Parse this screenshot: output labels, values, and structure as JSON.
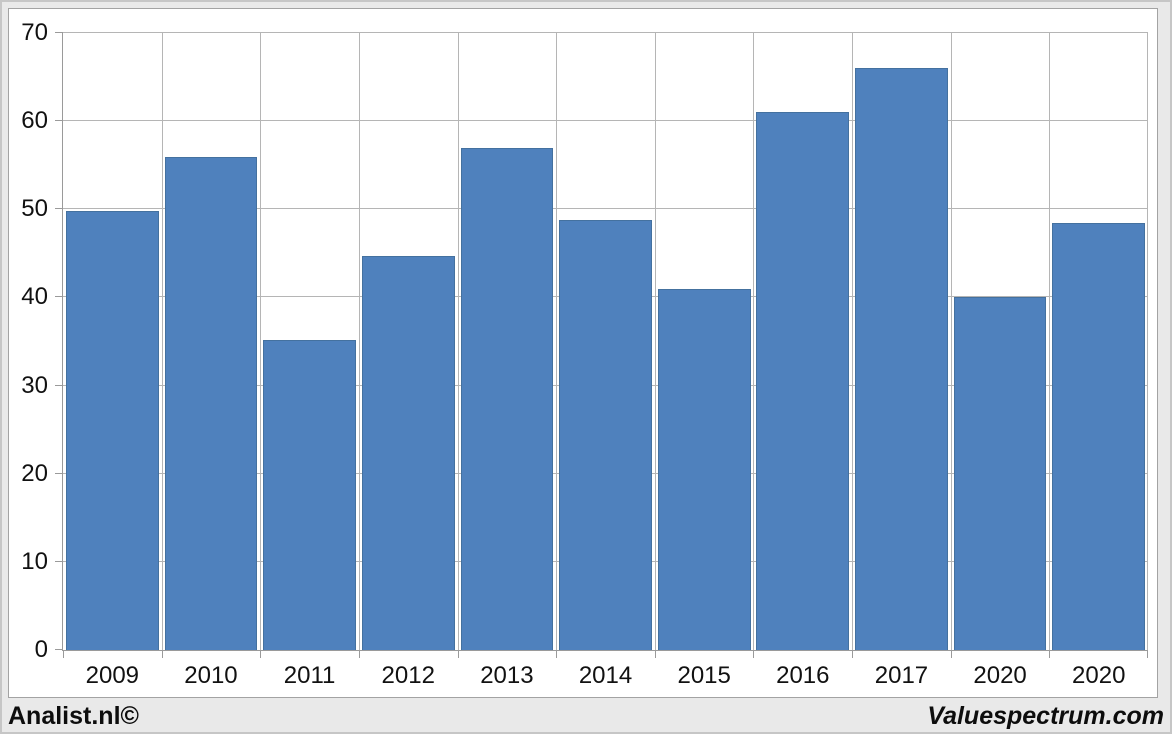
{
  "footer": {
    "left": "Analist.nl©",
    "right": "Valuespectrum.com"
  },
  "colors": {
    "bar_fill": "#4f81bd",
    "bar_border": "#44719f",
    "gridline": "#b5b5b5",
    "axis_line": "#9a9a9a",
    "plot_background": "#ffffff",
    "frame_background": "#e9e9e9"
  },
  "chart_data": {
    "type": "bar",
    "categories": [
      "2009",
      "2010",
      "2011",
      "2012",
      "2013",
      "2014",
      "2015",
      "2016",
      "2017",
      "2020",
      "2020"
    ],
    "values": [
      49.8,
      55.9,
      35.2,
      44.7,
      56.9,
      48.8,
      41.0,
      61.0,
      66.0,
      40.1,
      48.4
    ],
    "title": "",
    "xlabel": "",
    "ylabel": "",
    "ylim": [
      0,
      70
    ],
    "yticks": [
      0,
      10,
      20,
      30,
      40,
      50,
      60,
      70
    ],
    "grid": true,
    "legend": false,
    "legend_position": "none"
  }
}
